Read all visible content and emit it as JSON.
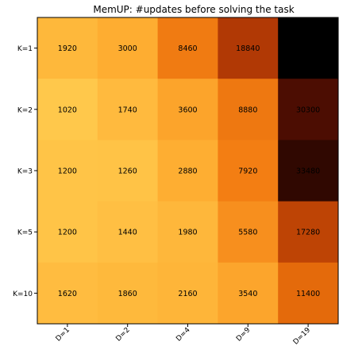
{
  "chart_data": {
    "type": "heatmap",
    "title": "MemUP: #updates before solving the task",
    "rows": [
      "K=1",
      "K=2",
      "K=3",
      "K=5",
      "K=10"
    ],
    "columns": [
      "D=1",
      "D=2",
      "D=4",
      "D=9",
      "D=19"
    ],
    "values": [
      [
        1920,
        3000,
        8460,
        18840,
        null
      ],
      [
        1020,
        1740,
        3600,
        8880,
        30300
      ],
      [
        1200,
        1260,
        2880,
        7920,
        33480
      ],
      [
        1200,
        1440,
        1980,
        5580,
        17280
      ],
      [
        1620,
        1860,
        2160,
        3540,
        11400
      ]
    ],
    "colormap": "YlOrBr-like (light orange = low, black = high)",
    "colors": {
      "empty_cell": "#000000",
      "axis": "#000000"
    },
    "grid": false,
    "legend": "none"
  }
}
